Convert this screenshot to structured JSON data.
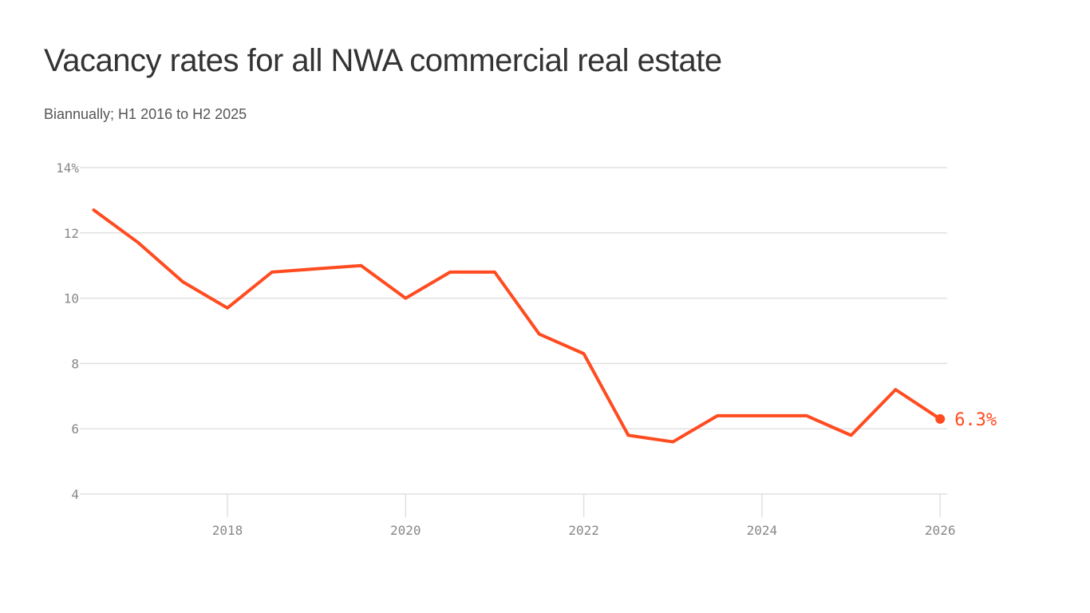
{
  "chart_data": {
    "type": "line",
    "title": "Vacancy rates for all NWA commercial real estate",
    "subtitle": "Biannually; H1 2016 to H2 2025",
    "xlabel": "",
    "ylabel": "",
    "xlim": [
      2016.5,
      2026
    ],
    "ylim": [
      4,
      14
    ],
    "x_ticks": [
      2018,
      2020,
      2022,
      2024,
      2026
    ],
    "y_ticks": [
      4,
      6,
      8,
      10,
      12,
      14
    ],
    "y_tick_labels": [
      "4",
      "6",
      "8",
      "10",
      "12",
      "14%"
    ],
    "grid": "horizontal",
    "color": "#ff4b1f",
    "series": [
      {
        "x": [
          2016.5,
          2017,
          2017.5,
          2018,
          2018.5,
          2019,
          2019.5,
          2020,
          2020.5,
          2021,
          2021.5,
          2022,
          2022.5,
          2023,
          2023.5,
          2024,
          2024.5,
          2025,
          2025.5,
          2026
        ],
        "values": [
          12.7,
          11.7,
          10.5,
          9.7,
          10.8,
          10.9,
          11.0,
          10.0,
          10.8,
          10.8,
          8.9,
          8.3,
          5.8,
          5.6,
          6.4,
          6.4,
          6.4,
          5.8,
          7.2,
          6.3
        ]
      }
    ],
    "end_label": "6.3%"
  }
}
